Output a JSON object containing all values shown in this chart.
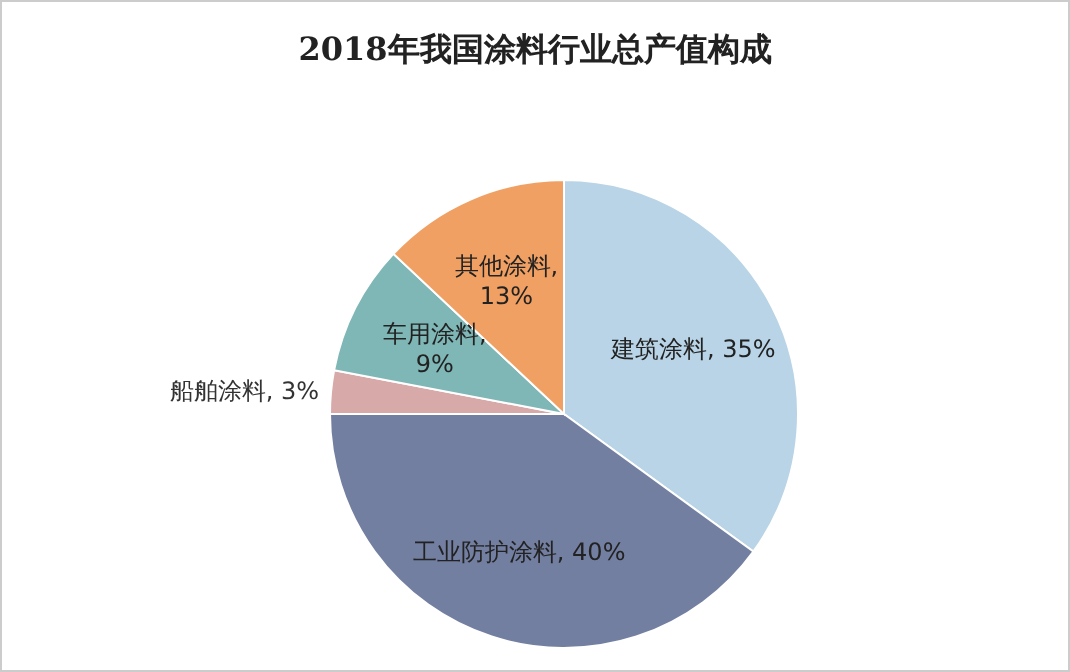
{
  "chart_data": {
    "type": "pie",
    "title": "2018年我国涂料行业总产值构成",
    "categories": [
      "建筑涂料",
      "工业防护涂料",
      "船舶涂料",
      "车用涂料",
      "其他涂料"
    ],
    "values": [
      35,
      40,
      3,
      9,
      13
    ],
    "value_labels": [
      ", 35%",
      ", 40%",
      ", 3%",
      ", 9%",
      ", 13%"
    ],
    "colors": [
      "#b8d4e6",
      "#737fa1",
      "#d8a9a9",
      "#7fb6b6",
      "#f0a062"
    ],
    "data_labels": true
  }
}
